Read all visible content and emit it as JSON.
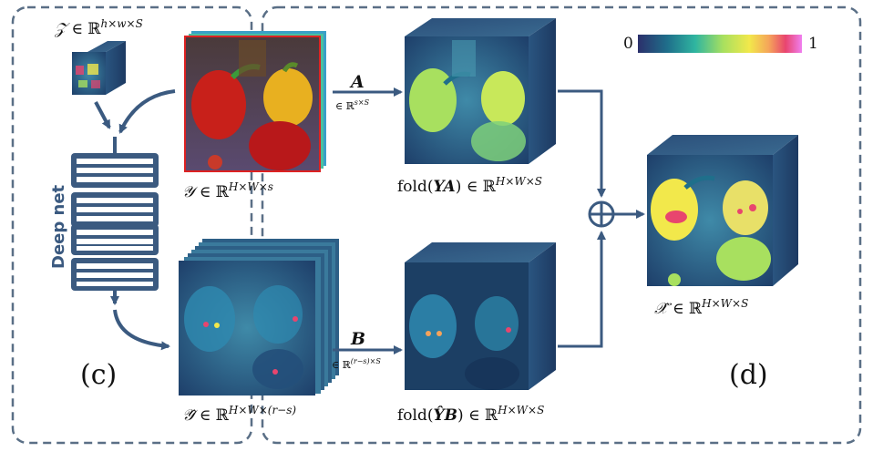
{
  "labels": {
    "z_label": "𝒵 ∈ ℝ^{h×w×S}",
    "y_label": "𝒴 ∈ ℝ^{H×W×s}",
    "yhat_label": "𝒴̂ ∈ ℝ^{H×W×(r−s)}",
    "foldYA_label": "fold(YA) ∈ ℝ^{H×W×S}",
    "foldYB_label": "fold(ŶB) ∈ ℝ^{H×W×S}",
    "xhat_label": "𝒳̂ ∈ ℝ^{H×W×S}",
    "arrow_a": "A",
    "arrow_a_domain": "∈ ℝ^{s×S}",
    "arrow_b": "B",
    "arrow_b_domain": "∈ ℝ^{(r−s)×S}",
    "deep_net": "Deep net",
    "panel_c": "(c)",
    "panel_d": "(d)"
  },
  "colorbar": {
    "min_label": "0",
    "max_label": "1",
    "stops": [
      "#2b2f6b",
      "#1f6f8b",
      "#2fb5a0",
      "#a8e05f",
      "#f2e84b",
      "#f5a35a",
      "#e8456e",
      "#f07ff0"
    ]
  },
  "colors": {
    "frame": "#5a6f86",
    "arrow": "#3b5a80",
    "net_block": "#3b5a80"
  }
}
